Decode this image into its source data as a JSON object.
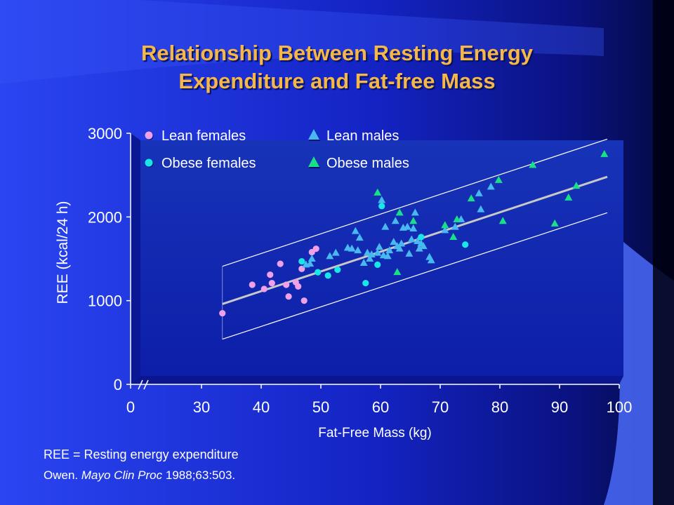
{
  "title": {
    "line1": "Relationship Between Resting Energy",
    "line2": "Expenditure and Fat-free Mass"
  },
  "footnote": "REE = Resting energy expenditure",
  "citation": {
    "author": "Owen.",
    "journal": "Mayo Clin Proc",
    "ref": "1988;63:503."
  },
  "colors": {
    "background": "#1a2fd6",
    "title": "#f5b74a",
    "lean_females": "#f0a0e8",
    "obese_females": "#19e6e6",
    "lean_males": "#47b8f0",
    "obese_males": "#19e088",
    "regression_line": "#c8c8c8"
  },
  "chart_data": {
    "type": "scatter",
    "xlabel": "Fat-Free Mass (kg)",
    "ylabel": "REE (kcal/24 h)",
    "x_ticks": [
      "0",
      "30",
      "40",
      "50",
      "60",
      "70",
      "80",
      "90",
      "100"
    ],
    "y_ticks": [
      "0",
      "1000",
      "2000",
      "3000"
    ],
    "xlim": [
      30,
      100
    ],
    "ylim": [
      0,
      3000
    ],
    "x_axis_break": true,
    "legend_position": "top-left",
    "series": [
      {
        "name": "Lean females",
        "marker": "circle",
        "points": [
          [
            33.5,
            850
          ],
          [
            38.5,
            1190
          ],
          [
            40.5,
            1140
          ],
          [
            41.5,
            1310
          ],
          [
            41.8,
            1210
          ],
          [
            43.2,
            1440
          ],
          [
            44.2,
            1190
          ],
          [
            44.6,
            1050
          ],
          [
            45.8,
            1220
          ],
          [
            46.2,
            1170
          ],
          [
            46.8,
            1380
          ],
          [
            47.2,
            1000
          ],
          [
            48.5,
            1580
          ],
          [
            49.2,
            1620
          ]
        ]
      },
      {
        "name": "Obese females",
        "marker": "circle",
        "points": [
          [
            46.8,
            1470
          ],
          [
            49.5,
            1340
          ],
          [
            51.2,
            1300
          ],
          [
            52.8,
            1370
          ],
          [
            57.5,
            1210
          ],
          [
            59.5,
            1430
          ],
          [
            60.2,
            2130
          ],
          [
            66.8,
            1760
          ],
          [
            74.2,
            1670
          ]
        ]
      },
      {
        "name": "Lean males",
        "marker": "triangle",
        "points": [
          [
            47.5,
            1430
          ],
          [
            48.2,
            1440
          ],
          [
            48.5,
            1500
          ],
          [
            51.5,
            1530
          ],
          [
            52.5,
            1570
          ],
          [
            54.5,
            1630
          ],
          [
            55.2,
            1620
          ],
          [
            55.8,
            1830
          ],
          [
            56.2,
            1600
          ],
          [
            56.5,
            1750
          ],
          [
            57.2,
            1450
          ],
          [
            57.8,
            1570
          ],
          [
            58.2,
            1500
          ],
          [
            58.5,
            1550
          ],
          [
            59.5,
            1570
          ],
          [
            59.8,
            1640
          ],
          [
            60.2,
            2200
          ],
          [
            60.5,
            1540
          ],
          [
            60.8,
            1880
          ],
          [
            61.2,
            1530
          ],
          [
            61.5,
            1600
          ],
          [
            62.2,
            1700
          ],
          [
            62.5,
            1950
          ],
          [
            62.8,
            1650
          ],
          [
            63.2,
            1620
          ],
          [
            63.5,
            1680
          ],
          [
            63.8,
            1870
          ],
          [
            64.5,
            1880
          ],
          [
            64.8,
            1560
          ],
          [
            65.2,
            1730
          ],
          [
            65.5,
            1860
          ],
          [
            65.8,
            2050
          ],
          [
            66.2,
            1710
          ],
          [
            66.5,
            1620
          ],
          [
            66.8,
            1680
          ],
          [
            67.2,
            1650
          ],
          [
            68.2,
            1520
          ],
          [
            68.5,
            1480
          ],
          [
            70.8,
            1840
          ],
          [
            72.5,
            1880
          ],
          [
            73.5,
            1970
          ],
          [
            76.5,
            2280
          ],
          [
            76.8,
            2090
          ],
          [
            78.5,
            2360
          ]
        ]
      },
      {
        "name": "Obese males",
        "marker": "triangle",
        "points": [
          [
            59.5,
            2290
          ],
          [
            62.8,
            1340
          ],
          [
            63.2,
            2050
          ],
          [
            65.5,
            1950
          ],
          [
            70.8,
            1900
          ],
          [
            72.2,
            1760
          ],
          [
            72.8,
            1970
          ],
          [
            75.2,
            2220
          ],
          [
            79.8,
            2440
          ],
          [
            80.5,
            1950
          ],
          [
            85.5,
            2620
          ],
          [
            89.2,
            1920
          ],
          [
            91.5,
            2230
          ],
          [
            92.8,
            2370
          ],
          [
            97.5,
            2750
          ]
        ]
      }
    ],
    "regression": {
      "x": [
        33.5,
        98.0
      ],
      "y": [
        960,
        2480
      ]
    },
    "confidence_band": {
      "x": [
        33.5,
        98.0
      ],
      "upper": [
        1410,
        2930
      ],
      "lower": [
        540,
        2050
      ]
    }
  }
}
